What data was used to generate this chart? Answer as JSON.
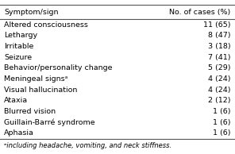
{
  "header": [
    "Symptom/sign",
    "No. of cases (%)"
  ],
  "rows": [
    [
      "Altered consciousness",
      "11 (65)"
    ],
    [
      "Lethargy",
      "8 (47)"
    ],
    [
      "Irritable",
      "3 (18)"
    ],
    [
      "Seizure",
      "7 (41)"
    ],
    [
      "Behavior/personality change",
      "5 (29)"
    ],
    [
      "Meningeal signsᵃ",
      "4 (24)"
    ],
    [
      "Visual hallucination",
      "4 (24)"
    ],
    [
      "Ataxia",
      "2 (12)"
    ],
    [
      "Blurred vision",
      "1 (6)"
    ],
    [
      "Guillain-Barré syndrome",
      "1 (6)"
    ],
    [
      "Aphasia",
      "1 (6)"
    ]
  ],
  "footnote": "ᵃincluding headache, vomiting, and neck stiffness.",
  "bg_color": "#ffffff",
  "header_fontsize": 6.8,
  "row_fontsize": 6.8,
  "footnote_fontsize": 6.0
}
